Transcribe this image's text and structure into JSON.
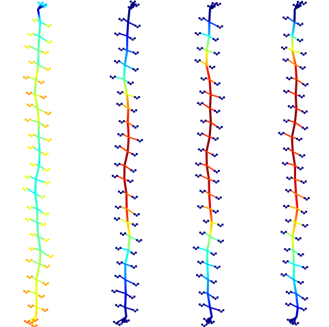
{
  "figure": {
    "background": "#ffffff",
    "colormap": "jet",
    "panels": [
      {
        "id": "panel-1",
        "description_for_rendering_only": "",
        "segments": [
          [
            0.04,
            0.0,
            0.42
          ],
          [
            0.45,
            0.4,
            0.45
          ],
          [
            0.9,
            0.43,
            0.48
          ],
          [
            1.37,
            0.5,
            0.42
          ],
          [
            1.84,
            0.52,
            0.65
          ],
          [
            2.31,
            0.58,
            0.5
          ],
          [
            2.8,
            0.62,
            0.55
          ],
          [
            3.25,
            0.58,
            0.6
          ],
          [
            3.7,
            0.55,
            0.45
          ],
          [
            4.18,
            0.5,
            0.38
          ],
          [
            4.65,
            0.48,
            0.35
          ],
          [
            5.1,
            0.45,
            0.4
          ],
          [
            5.55,
            0.42,
            0.38
          ],
          [
            6.02,
            0.4,
            0.44
          ],
          [
            6.5,
            0.42,
            0.52
          ],
          [
            6.95,
            0.45,
            0.48
          ],
          [
            7.4,
            0.48,
            0.45
          ],
          [
            7.85,
            0.5,
            0.55
          ],
          [
            8.3,
            0.55,
            0.58
          ],
          [
            8.8,
            0.6,
            0.62
          ],
          [
            9.25,
            0.62,
            0.6
          ],
          [
            9.7,
            0.65,
            0.65
          ],
          [
            10.0,
            0.68,
            0.7
          ]
        ],
        "leafValue": 0.35
      },
      {
        "id": "panel-2",
        "segments": [
          [
            0.04,
            0.0,
            0.0
          ],
          [
            0.45,
            0.05,
            0.08
          ],
          [
            0.9,
            0.15,
            0.22
          ],
          [
            1.37,
            0.25,
            0.3
          ],
          [
            1.84,
            0.35,
            0.45
          ],
          [
            2.31,
            0.5,
            0.6
          ],
          [
            2.8,
            0.7,
            0.75
          ],
          [
            3.25,
            0.82,
            0.85
          ],
          [
            3.7,
            0.9,
            0.92
          ],
          [
            4.18,
            0.95,
            0.96
          ],
          [
            4.65,
            0.97,
            0.98
          ],
          [
            5.1,
            0.98,
            0.97
          ],
          [
            5.55,
            0.97,
            0.96
          ],
          [
            6.02,
            0.92,
            0.9
          ],
          [
            6.5,
            0.85,
            0.8
          ],
          [
            6.95,
            0.7,
            0.62
          ],
          [
            7.4,
            0.55,
            0.5
          ],
          [
            7.85,
            0.42,
            0.38
          ],
          [
            8.3,
            0.3,
            0.26
          ],
          [
            8.8,
            0.2,
            0.15
          ],
          [
            9.25,
            0.1,
            0.08
          ],
          [
            9.7,
            0.05,
            0.03
          ],
          [
            10.0,
            0.02,
            0.0
          ]
        ],
        "leafValue": 0.0
      },
      {
        "id": "panel-3",
        "segments": [
          [
            0.04,
            0.0,
            0.0
          ],
          [
            0.45,
            0.2,
            0.3
          ],
          [
            0.9,
            0.45,
            0.55
          ],
          [
            1.37,
            0.62,
            0.7
          ],
          [
            1.84,
            0.8,
            0.88
          ],
          [
            2.31,
            0.92,
            0.95
          ],
          [
            2.8,
            0.97,
            0.98
          ],
          [
            3.25,
            0.99,
            1.0
          ],
          [
            3.7,
            1.0,
            0.99
          ],
          [
            4.18,
            0.99,
            0.98
          ],
          [
            4.65,
            0.98,
            0.97
          ],
          [
            5.1,
            0.97,
            0.95
          ],
          [
            5.55,
            0.95,
            0.92
          ],
          [
            6.02,
            0.92,
            0.88
          ],
          [
            6.5,
            0.85,
            0.75
          ],
          [
            6.95,
            0.7,
            0.62
          ],
          [
            7.4,
            0.55,
            0.48
          ],
          [
            7.85,
            0.45,
            0.4
          ],
          [
            8.3,
            0.38,
            0.34
          ],
          [
            8.8,
            0.3,
            0.25
          ],
          [
            9.25,
            0.22,
            0.15
          ],
          [
            9.7,
            0.1,
            0.05
          ],
          [
            10.0,
            0.02,
            0.0
          ]
        ],
        "leafValue": 0.0
      },
      {
        "id": "panel-4",
        "segments": [
          [
            0.04,
            0.0,
            0.0
          ],
          [
            0.45,
            0.25,
            0.35
          ],
          [
            0.9,
            0.5,
            0.62
          ],
          [
            1.37,
            0.7,
            0.8
          ],
          [
            1.84,
            0.88,
            0.94
          ],
          [
            2.31,
            0.96,
            0.98
          ],
          [
            2.8,
            0.99,
            1.0
          ],
          [
            3.25,
            1.0,
            0.99
          ],
          [
            3.7,
            0.99,
            0.98
          ],
          [
            4.18,
            0.98,
            0.97
          ],
          [
            4.65,
            0.97,
            0.96
          ],
          [
            5.1,
            0.96,
            0.94
          ],
          [
            5.55,
            0.94,
            0.9
          ],
          [
            6.02,
            0.9,
            0.85
          ],
          [
            6.5,
            0.82,
            0.74
          ],
          [
            6.95,
            0.72,
            0.64
          ],
          [
            7.4,
            0.62,
            0.55
          ],
          [
            7.85,
            0.52,
            0.46
          ],
          [
            8.3,
            0.44,
            0.38
          ],
          [
            8.8,
            0.35,
            0.28
          ],
          [
            9.25,
            0.25,
            0.18
          ],
          [
            9.7,
            0.12,
            0.06
          ],
          [
            10.0,
            0.03,
            0.0
          ]
        ],
        "leafValue": 0.0
      }
    ]
  }
}
